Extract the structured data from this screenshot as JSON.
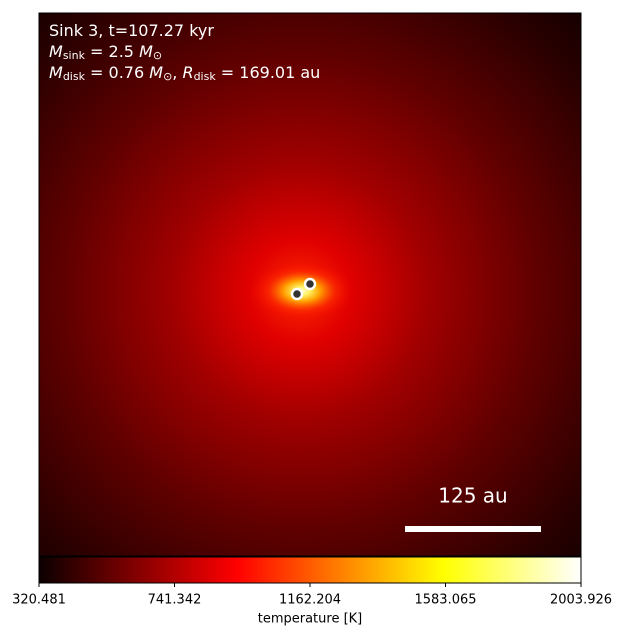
{
  "chart_data": {
    "type": "heatmap",
    "annotations": [
      [
        {
          "text": "Sink 3, t=107.27 kyr"
        }
      ],
      [
        {
          "text": "M",
          "italic": true
        },
        {
          "text": "sink",
          "sub": true
        },
        {
          "text": " = 2.5 "
        },
        {
          "text": "M",
          "italic": true
        },
        {
          "text": "⊙",
          "sub": true
        }
      ],
      [
        {
          "text": "M",
          "italic": true
        },
        {
          "text": "disk",
          "sub": true
        },
        {
          "text": " = 0.76 "
        },
        {
          "text": "M",
          "italic": true
        },
        {
          "text": "⊙",
          "sub": true
        },
        {
          "text": ", "
        },
        {
          "text": "R",
          "italic": true
        },
        {
          "text": "disk",
          "sub": true
        },
        {
          "text": " = 169.01 au"
        }
      ]
    ],
    "scale_bar_label": "125 au",
    "colormap": "hot",
    "colorbar": {
      "label": "temperature [K]",
      "lim": [
        320.481,
        2003.926
      ],
      "ticks": [
        320.481,
        741.342,
        1162.204,
        1583.065,
        2003.926
      ]
    }
  }
}
